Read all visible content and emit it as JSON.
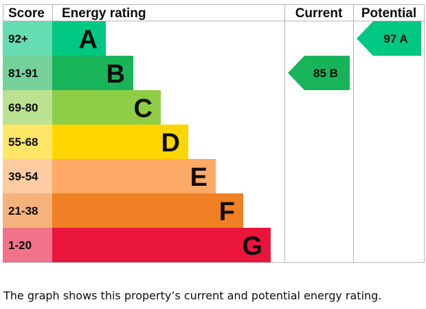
{
  "chart_data": {
    "type": "bar",
    "headers": {
      "score": "Score",
      "rating": "Energy rating",
      "current": "Current",
      "potential": "Potential"
    },
    "bands": [
      {
        "range": "92+",
        "letter": "A",
        "color": "#00c781",
        "score_color": "#66dcb3"
      },
      {
        "range": "81-91",
        "letter": "B",
        "color": "#19b459",
        "score_color": "#75d29b"
      },
      {
        "range": "69-80",
        "letter": "C",
        "color": "#8dce46",
        "score_color": "#bbe290"
      },
      {
        "range": "55-68",
        "letter": "D",
        "color": "#ffd500",
        "score_color": "#ffe666"
      },
      {
        "range": "39-54",
        "letter": "E",
        "color": "#fcaa65",
        "score_color": "#fdcca3"
      },
      {
        "range": "21-38",
        "letter": "F",
        "color": "#ef8023",
        "score_color": "#f5b37b"
      },
      {
        "range": "1-20",
        "letter": "G",
        "color": "#e9153b",
        "score_color": "#f27389"
      }
    ],
    "current": {
      "score": 85,
      "letter": "B",
      "label": "85 B",
      "color": "#19b459"
    },
    "potential": {
      "score": 97,
      "letter": "A",
      "label": "97 A",
      "color": "#00c781"
    }
  },
  "caption": "The graph shows this property’s current and potential energy rating."
}
